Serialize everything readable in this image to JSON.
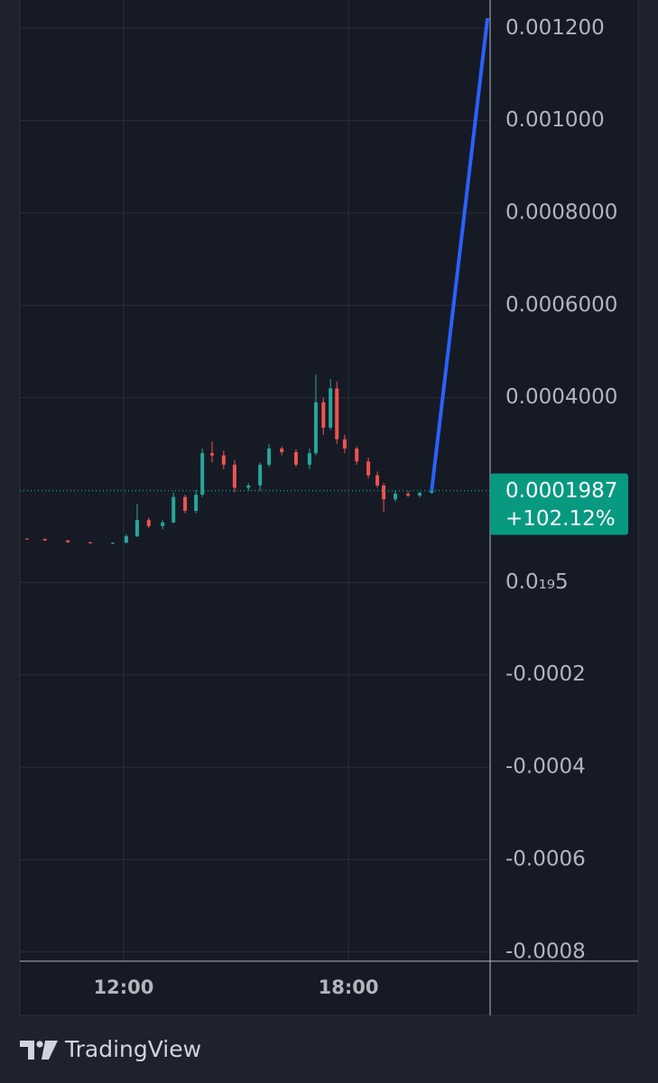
{
  "chart_data": {
    "type": "candlestick",
    "up_color": "#26a69a",
    "down_color": "#ef5350",
    "x": [
      9.42,
      9.9,
      10.51,
      11.11,
      11.71,
      12.07,
      12.36,
      12.67,
      13.04,
      13.33,
      13.64,
      13.93,
      14.1,
      14.36,
      14.67,
      14.96,
      15.33,
      15.64,
      15.88,
      16.22,
      16.6,
      16.96,
      17.13,
      17.33,
      17.52,
      17.69,
      17.9,
      18.22,
      18.53,
      18.77,
      18.94,
      19.25,
      19.59,
      19.9,
      20.22
    ],
    "open": [
      9.5e-05,
      9.4e-05,
      9.1e-05,
      8.7e-05,
      8.5e-05,
      8.6e-05,
      0.0001,
      0.000135,
      0.000122,
      0.00013,
      0.000185,
      0.000155,
      0.00019,
      0.00028,
      0.000275,
      0.000255,
      0.000205,
      0.00021,
      0.000255,
      0.00029,
      0.000282,
      0.000255,
      0.00028,
      0.00039,
      0.000335,
      0.00042,
      0.00031,
      0.00029,
      0.000262,
      0.000232,
      0.00021,
      0.00018,
      0.000192,
      0.000188,
      0.000194
    ],
    "high": [
      9.6e-05,
      9.5e-05,
      9.2e-05,
      8.8e-05,
      8.7e-05,
      0.000105,
      0.00017,
      0.00014,
      0.000135,
      0.000195,
      0.00019,
      0.0002,
      0.00029,
      0.000305,
      0.000285,
      0.000265,
      0.000215,
      0.00026,
      0.0003,
      0.000295,
      0.000288,
      0.00029,
      0.00045,
      0.0004,
      0.00044,
      0.000435,
      0.00032,
      0.000295,
      0.00027,
      0.00024,
      0.000215,
      0.0002,
      0.000198,
      0.000196,
      0.0002
    ],
    "low": [
      9.3e-05,
      9e-05,
      8.6e-05,
      8.4e-05,
      8.3e-05,
      8.5e-05,
      9.8e-05,
      0.000118,
      0.000115,
      0.000128,
      0.00015,
      0.00015,
      0.000185,
      0.00026,
      0.000245,
      0.000195,
      0.000198,
      0.000198,
      0.00025,
      0.000275,
      0.00025,
      0.000245,
      0.000275,
      0.00032,
      0.00033,
      0.0003,
      0.00028,
      0.000255,
      0.000225,
      0.000205,
      0.000152,
      0.000175,
      0.000185,
      0.000184,
      0.000192
    ],
    "close": [
      9.4e-05,
      9.1e-05,
      8.7e-05,
      8.5e-05,
      8.6e-05,
      0.0001,
      0.000135,
      0.000122,
      0.00013,
      0.000185,
      0.000155,
      0.00019,
      0.00028,
      0.000275,
      0.000255,
      0.000205,
      0.00021,
      0.000255,
      0.00029,
      0.000282,
      0.000255,
      0.00028,
      0.00039,
      0.000335,
      0.00042,
      0.00031,
      0.00029,
      0.000262,
      0.000232,
      0.00021,
      0.00018,
      0.000192,
      0.000188,
      0.000194,
      0.0001987
    ],
    "drawing": {
      "color": "#2962ff",
      "x": [
        20.22,
        21.71
      ],
      "values": [
        0.0001987,
        0.001222
      ]
    },
    "last_price": 0.0001987,
    "change_label": "+102.12%",
    "label_color": "#089981",
    "xlim": [
      9.23,
      21.78
    ],
    "ylim": [
      -0.00082,
      0.001222
    ],
    "xticks": [
      {
        "value": 12,
        "label": "12:00"
      },
      {
        "value": 18,
        "label": "18:00"
      }
    ],
    "yticks": [
      {
        "value": 0.0012,
        "label": "0.001200"
      },
      {
        "value": 0.001,
        "label": "0.001000"
      },
      {
        "value": 0.0008,
        "label": "0.0008000"
      },
      {
        "value": 0.0006,
        "label": "0.0006000"
      },
      {
        "value": 0.0004,
        "label": "0.0004000"
      },
      {
        "value": 5e-20,
        "label": "0.0₁₉5"
      },
      -0.0002,
      -0.0004,
      -0.0006,
      -0.0008
    ],
    "grid": true
  },
  "branding": "TradingView"
}
